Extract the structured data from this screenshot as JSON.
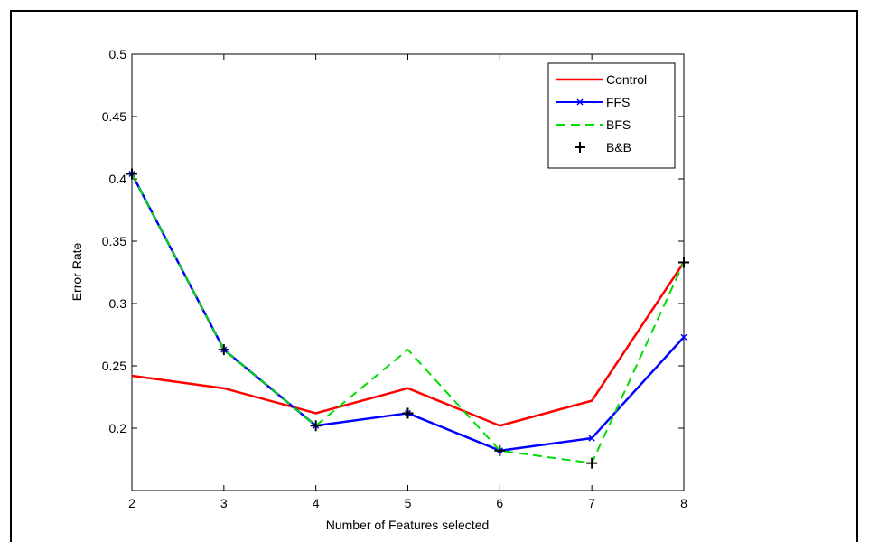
{
  "chart_data": {
    "type": "line",
    "title": "",
    "xlabel": "Number of Features selected",
    "ylabel": "Error Rate",
    "xlim": [
      2,
      8
    ],
    "ylim": [
      0.15,
      0.5
    ],
    "x_ticks": [
      "2",
      "3",
      "4",
      "5",
      "6",
      "7",
      "8"
    ],
    "y_ticks": [
      "0.2",
      "0.25",
      "0.3",
      "0.35",
      "0.4",
      "0.45",
      "0.5"
    ],
    "grid": false,
    "legend_position": "top-right",
    "x": [
      2,
      3,
      4,
      5,
      6,
      7,
      8
    ],
    "series": [
      {
        "name": "Control",
        "color": "#ff0000",
        "style": "solid",
        "marker": "none",
        "values": [
          0.242,
          0.232,
          0.212,
          0.232,
          0.202,
          0.222,
          0.333
        ]
      },
      {
        "name": "FFS",
        "color": "#0000ff",
        "style": "solid",
        "marker": "x",
        "values": [
          0.404,
          0.263,
          0.202,
          0.212,
          0.182,
          0.192,
          0.273
        ]
      },
      {
        "name": "BFS",
        "color": "#00dd00",
        "style": "dashed",
        "marker": "none",
        "values": [
          0.404,
          0.263,
          0.202,
          0.263,
          0.182,
          0.172,
          0.333
        ]
      },
      {
        "name": "B&B",
        "color": "#000000",
        "style": "none",
        "marker": "+",
        "values": [
          0.404,
          0.263,
          0.202,
          0.212,
          0.182,
          0.172,
          0.333
        ]
      }
    ]
  }
}
